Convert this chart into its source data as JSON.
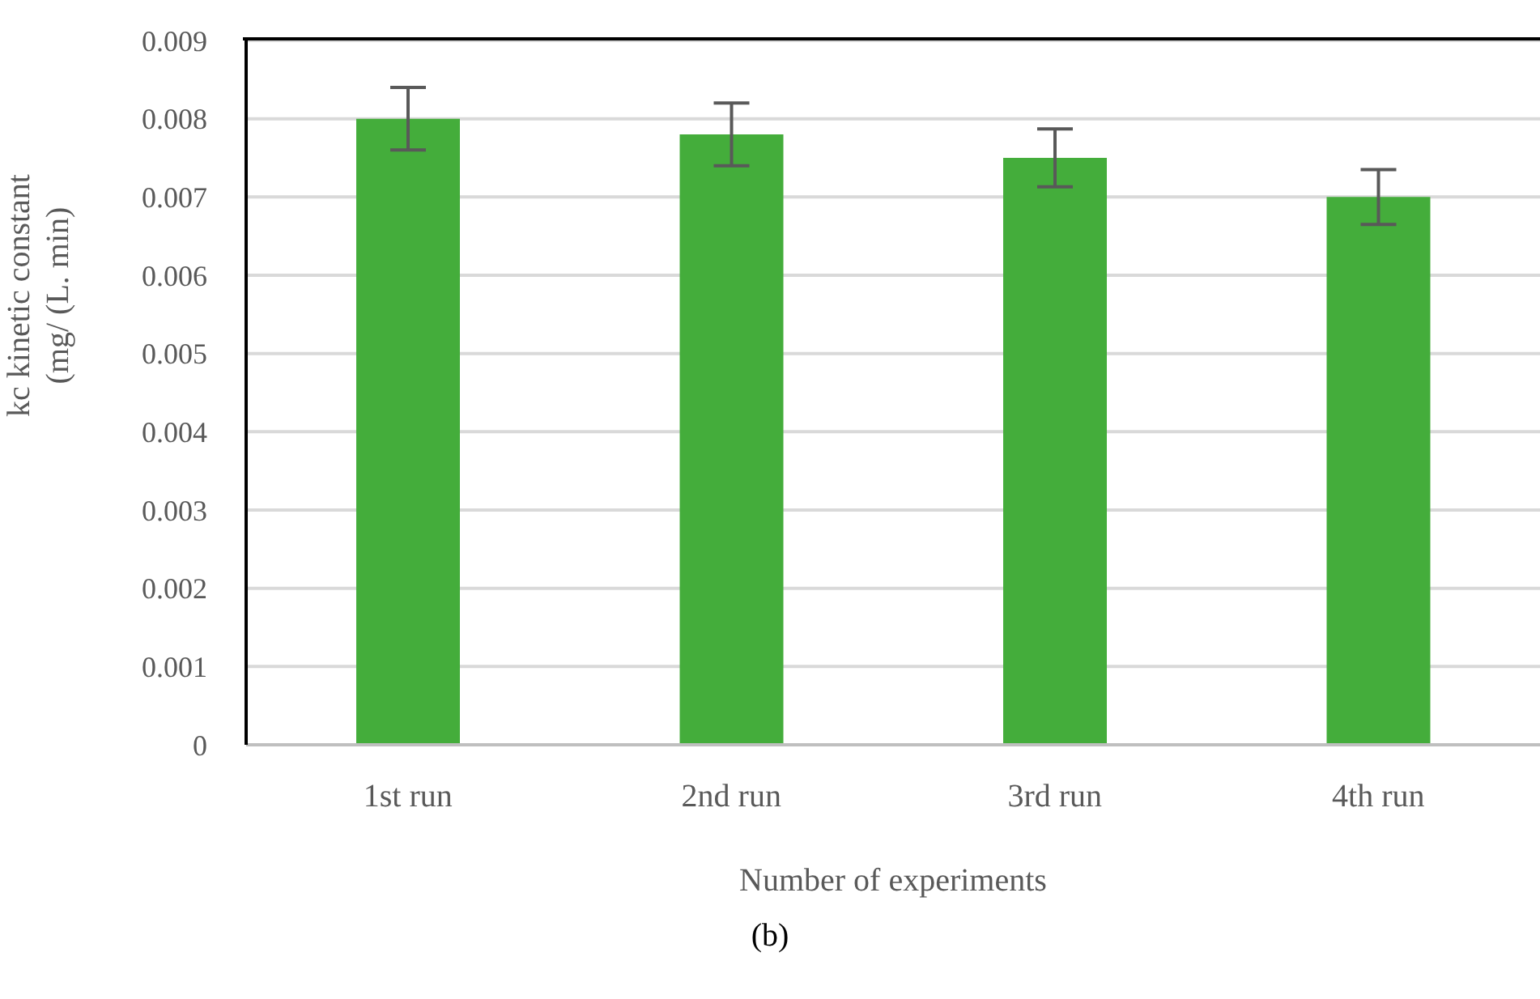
{
  "chart_data": {
    "type": "bar",
    "xlabel": "Number of  experiments",
    "ylabel": "kc kinetic constant (mg/ (L. min)",
    "categories": [
      "1st run",
      "2nd run",
      "3rd run",
      "4th run"
    ],
    "values": [
      0.008,
      0.0078,
      0.0075,
      0.007
    ],
    "errors": [
      0.0004,
      0.0004,
      0.00037,
      0.00035
    ],
    "color": "#44ad3b",
    "ylim": [
      0,
      0.009
    ],
    "yticks": [
      0,
      0.001,
      0.002,
      0.003,
      0.004,
      0.005,
      0.006,
      0.007,
      0.008,
      0.009
    ],
    "grid": "y",
    "legend": false,
    "annotations": [
      "(b)"
    ]
  }
}
